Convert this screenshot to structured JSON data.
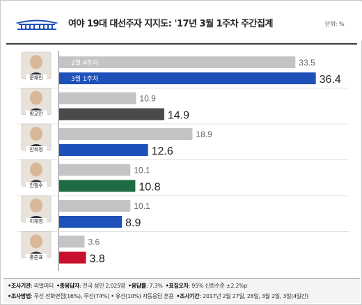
{
  "header": {
    "title": "여야 19대 대선주자 지지도: '17년 3월 1주차 주간집계",
    "unit": "단위: %"
  },
  "colors": {
    "prev": "#c4c4c4",
    "default_current": "#1d50b8",
    "candidates_current": [
      "#1d50b8",
      "#4a4a4a",
      "#1d50b8",
      "#1d6b43",
      "#1d50b8",
      "#c8102e"
    ]
  },
  "chart_data": {
    "type": "bar",
    "orientation": "horizontal",
    "categories": [
      "문재인",
      "황교안",
      "안희정",
      "안철수",
      "이재명",
      "홍준표"
    ],
    "series": [
      {
        "name": "2월 4주차",
        "values": [
          33.5,
          10.9,
          18.9,
          10.1,
          10.1,
          3.6
        ]
      },
      {
        "name": "3월 1주차",
        "values": [
          36.4,
          14.9,
          12.6,
          10.8,
          8.9,
          3.8
        ]
      }
    ],
    "xlim": [
      0,
      39
    ]
  },
  "footer": {
    "line1": [
      {
        "k": "조사기관",
        "v": ": 리얼미터"
      },
      {
        "k": "총응답자",
        "v": ": 전국 성인 2,025명"
      },
      {
        "k": "응답률",
        "v": ": 7.3%"
      },
      {
        "k": "표집오차",
        "v": ": 95% 신뢰수준 ±2.2%p"
      }
    ],
    "line2": [
      {
        "k": "조사방법",
        "v": ": 무선 전화면접(16%), 무선(74%) • 유선(10%) 자동응답 혼용"
      },
      {
        "k": "조사기간",
        "v": ": 2017년 2월 27일, 28일, 3월 2일, 3일(4일간)"
      }
    ]
  }
}
